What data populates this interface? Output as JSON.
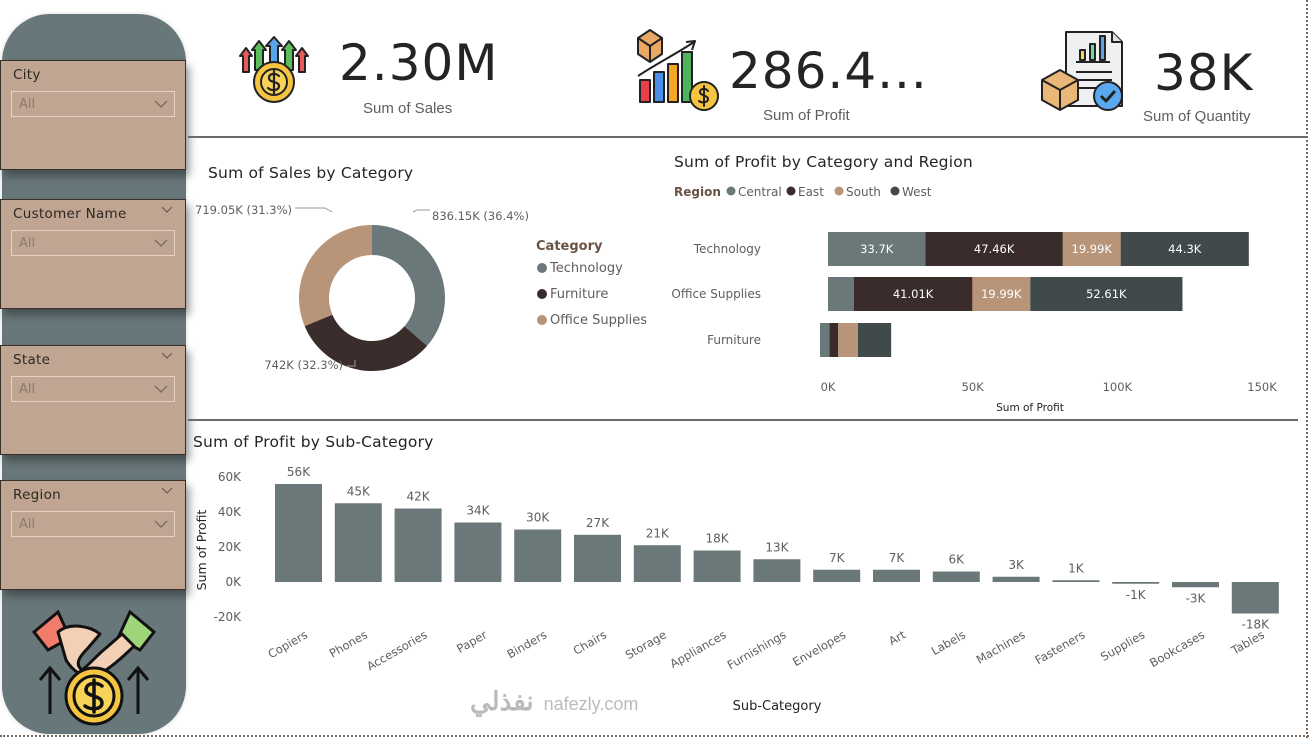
{
  "filters": [
    {
      "label": "City",
      "value": "All",
      "header_chevron": false
    },
    {
      "label": "Customer Name",
      "value": "All",
      "header_chevron": true
    },
    {
      "label": "State",
      "value": "All",
      "header_chevron": true
    },
    {
      "label": "Region",
      "value": "All",
      "header_chevron": true
    }
  ],
  "kpis": [
    {
      "value": "2.30M",
      "label": "Sum of Sales",
      "icon": "money-growth-icon"
    },
    {
      "value": "286.4...",
      "label": "Sum of Profit",
      "icon": "profit-chart-icon"
    },
    {
      "value": "38K",
      "label": "Sum of Quantity",
      "icon": "inventory-report-icon"
    }
  ],
  "colors": {
    "technology": "#6b7879",
    "furniture": "#3a2c2b",
    "office_supplies": "#b89478",
    "central": "#6b7879",
    "east": "#3a2c2b",
    "south": "#b89478",
    "west": "#414a4a",
    "bar": "#6b7879",
    "sidebar": "#68777a",
    "slicer": "#bfa592"
  },
  "watermark": {
    "arabic": "نفذلي",
    "latin": "nafezly.com"
  },
  "chart_data": [
    {
      "type": "pie",
      "title": "Sum of Sales by Category",
      "legend_title": "Category",
      "legend_position": "right",
      "categories": [
        "Technology",
        "Furniture",
        "Office Supplies"
      ],
      "values": [
        836150,
        742000,
        719050
      ],
      "labels": [
        "836.15K (36.4%)",
        "742K (32.3%)",
        "719.05K (31.3%)"
      ],
      "percent": [
        36.4,
        32.3,
        31.3
      ],
      "donut": true
    },
    {
      "type": "bar",
      "orientation": "horizontal",
      "stacked": true,
      "title": "Sum of Profit by Category and Region",
      "legend_title": "Region",
      "legend_position": "top-left",
      "categories": [
        "Technology",
        "Office Supplies",
        "Furniture"
      ],
      "series": [
        {
          "name": "Central",
          "values": [
            33700,
            8900,
            3300
          ],
          "labels": [
            "33.7K",
            "",
            ""
          ]
        },
        {
          "name": "East",
          "values": [
            47460,
            41010,
            3000
          ],
          "labels": [
            "47.46K",
            "41.01K",
            ""
          ]
        },
        {
          "name": "South",
          "values": [
            19990,
            19990,
            6800
          ],
          "labels": [
            "19.99K",
            "19.99K",
            ""
          ]
        },
        {
          "name": "West",
          "values": [
            44300,
            52610,
            11500
          ],
          "labels": [
            "44.3K",
            "52.61K",
            ""
          ]
        }
      ],
      "xlabel": "Sum of Profit",
      "xticks": [
        "0K",
        "50K",
        "100K",
        "150K"
      ],
      "xlim": [
        0,
        150000
      ]
    },
    {
      "type": "bar",
      "title": "Sum of Profit by Sub-Category",
      "xlabel": "Sub-Category",
      "ylabel": "Sum of Profit",
      "categories": [
        "Copiers",
        "Phones",
        "Accessories",
        "Paper",
        "Binders",
        "Chairs",
        "Storage",
        "Appliances",
        "Furnishings",
        "Envelopes",
        "Art",
        "Labels",
        "Machines",
        "Fasteners",
        "Supplies",
        "Bookcases",
        "Tables"
      ],
      "values": [
        56000,
        45000,
        42000,
        34000,
        30000,
        27000,
        21000,
        18000,
        13000,
        7000,
        7000,
        6000,
        3000,
        1000,
        -1000,
        -3000,
        -18000
      ],
      "labels": [
        "56K",
        "45K",
        "42K",
        "34K",
        "30K",
        "27K",
        "21K",
        "18K",
        "13K",
        "7K",
        "7K",
        "6K",
        "3K",
        "1K",
        "-1K",
        "-3K",
        "-18K"
      ],
      "yticks": [
        "60K",
        "40K",
        "20K",
        "0K",
        "-20K"
      ],
      "ylim": [
        -20000,
        60000
      ]
    }
  ]
}
